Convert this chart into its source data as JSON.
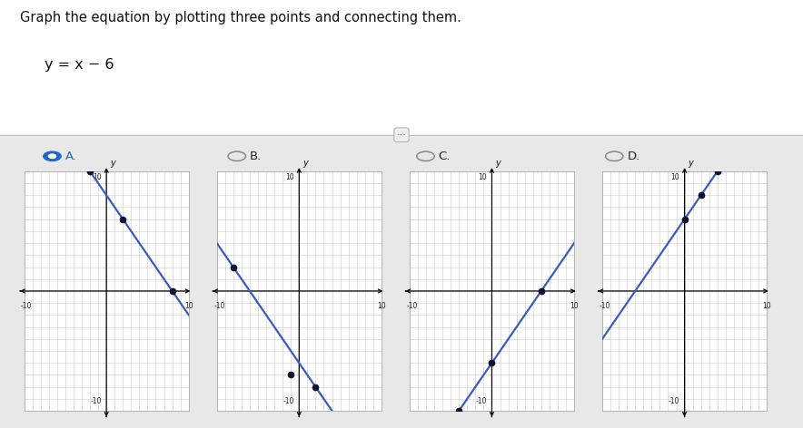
{
  "title": "Graph the equation by plotting three points and connecting them.",
  "equation": "y = x − 6",
  "bg_color": "#e8e8e8",
  "panel_bg": "#ffffff",
  "options": [
    "A.",
    "B.",
    "C.",
    "D."
  ],
  "selected": 0,
  "graph_range": 10,
  "line_color": "#3a5bbf",
  "point_color": "#111133",
  "graphs": [
    {
      "label": "A",
      "slope": -1,
      "intercept": 8,
      "points": [
        [
          -2,
          10
        ],
        [
          2,
          6
        ],
        [
          8,
          0
        ]
      ]
    },
    {
      "label": "B",
      "slope": -1,
      "intercept": -6,
      "points": [
        [
          -8,
          2
        ],
        [
          -1,
          -7
        ],
        [
          2,
          -8
        ]
      ]
    },
    {
      "label": "C",
      "slope": 1,
      "intercept": -6,
      "points": [
        [
          -4,
          -10
        ],
        [
          0,
          -6
        ],
        [
          6,
          0
        ]
      ]
    },
    {
      "label": "D",
      "slope": 1,
      "intercept": 6,
      "points": [
        [
          0,
          6
        ],
        [
          2,
          8
        ],
        [
          4,
          10
        ]
      ]
    }
  ]
}
